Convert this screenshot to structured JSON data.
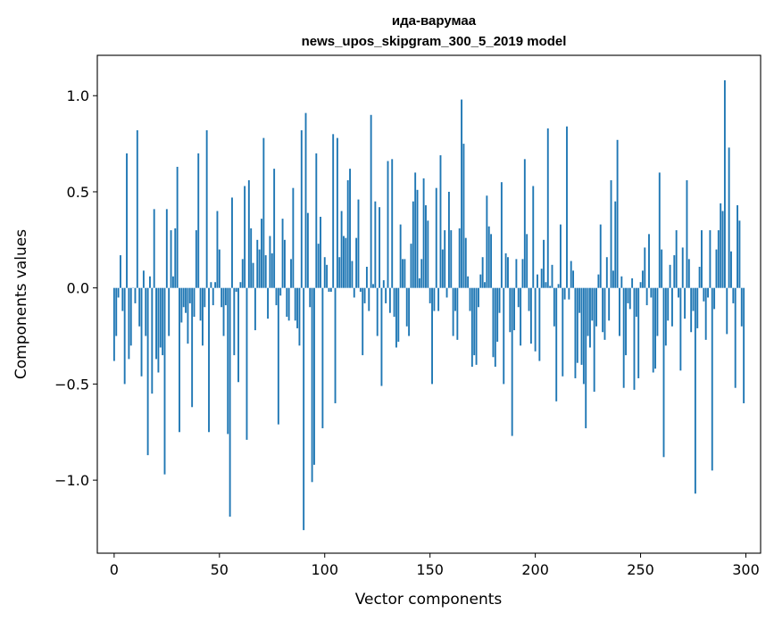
{
  "chart_data": {
    "type": "bar",
    "title_line1": "ида-варумаа",
    "title_line2": "news_upos_skipgram_300_5_2019 model",
    "xlabel": "Vector components",
    "ylabel": "Components values",
    "xlim": [
      -8,
      307
    ],
    "ylim": [
      -1.38,
      1.21
    ],
    "xticks": [
      {
        "value": 0,
        "label": "0"
      },
      {
        "value": 50,
        "label": "50"
      },
      {
        "value": 100,
        "label": "100"
      },
      {
        "value": 150,
        "label": "150"
      },
      {
        "value": 200,
        "label": "200"
      },
      {
        "value": 250,
        "label": "250"
      },
      {
        "value": 300,
        "label": "300"
      }
    ],
    "yticks": [
      {
        "value": -1.0,
        "label": "−1.0"
      },
      {
        "value": -0.5,
        "label": "−0.5"
      },
      {
        "value": 0.0,
        "label": "0.0"
      },
      {
        "value": 0.5,
        "label": "0.5"
      },
      {
        "value": 1.0,
        "label": "1.0"
      }
    ],
    "bar_color": "#1f77b4",
    "values": [
      -0.38,
      -0.25,
      -0.05,
      0.17,
      -0.12,
      -0.5,
      0.7,
      -0.37,
      -0.3,
      0.0,
      -0.08,
      0.82,
      -0.2,
      -0.46,
      0.09,
      -0.25,
      -0.87,
      0.06,
      -0.55,
      0.41,
      -0.37,
      -0.44,
      -0.31,
      -0.35,
      -0.97,
      0.41,
      -0.25,
      0.3,
      0.06,
      0.31,
      0.63,
      -0.75,
      -0.18,
      -0.1,
      -0.13,
      -0.29,
      -0.08,
      -0.62,
      -0.15,
      0.3,
      0.7,
      -0.17,
      -0.3,
      -0.1,
      0.82,
      -0.75,
      0.03,
      -0.09,
      0.03,
      0.4,
      0.2,
      -0.1,
      -0.25,
      -0.09,
      -0.76,
      -1.19,
      0.47,
      -0.35,
      -0.02,
      -0.49,
      0.03,
      0.15,
      0.53,
      -0.79,
      0.56,
      0.31,
      0.13,
      -0.22,
      0.25,
      0.2,
      0.36,
      0.78,
      0.17,
      -0.16,
      0.27,
      0.18,
      0.62,
      -0.09,
      -0.71,
      -0.04,
      0.36,
      0.25,
      -0.15,
      -0.17,
      0.15,
      0.52,
      -0.17,
      -0.21,
      -0.3,
      0.82,
      -1.26,
      0.91,
      0.39,
      -0.1,
      -1.01,
      -0.92,
      0.7,
      0.23,
      0.37,
      -0.73,
      0.16,
      0.12,
      -0.02,
      -0.02,
      0.8,
      -0.6,
      0.78,
      0.16,
      0.4,
      0.27,
      0.26,
      0.56,
      0.62,
      0.14,
      -0.05,
      0.26,
      0.46,
      -0.02,
      -0.35,
      -0.08,
      0.11,
      -0.12,
      0.9,
      0.02,
      0.45,
      -0.25,
      0.42,
      -0.51,
      0.04,
      -0.08,
      0.66,
      -0.13,
      0.67,
      -0.15,
      -0.31,
      -0.28,
      0.33,
      0.15,
      0.15,
      -0.2,
      -0.25,
      0.23,
      0.45,
      0.6,
      0.51,
      0.05,
      0.15,
      0.57,
      0.43,
      0.35,
      -0.08,
      -0.5,
      -0.12,
      0.52,
      -0.12,
      0.69,
      0.2,
      0.3,
      -0.05,
      0.5,
      0.3,
      -0.25,
      -0.12,
      -0.27,
      0.31,
      0.98,
      0.75,
      0.26,
      0.06,
      -0.12,
      -0.41,
      -0.35,
      -0.4,
      -0.1,
      0.07,
      0.16,
      0.03,
      0.48,
      0.32,
      0.28,
      -0.36,
      -0.41,
      -0.28,
      -0.13,
      0.55,
      -0.5,
      0.18,
      0.16,
      -0.23,
      -0.77,
      -0.22,
      0.15,
      -0.1,
      -0.3,
      0.15,
      0.67,
      0.28,
      -0.12,
      -0.29,
      0.53,
      -0.33,
      0.07,
      -0.38,
      0.1,
      0.25,
      0.03,
      0.83,
      0.01,
      0.12,
      -0.2,
      -0.59,
      0.02,
      0.33,
      -0.46,
      -0.06,
      0.84,
      -0.06,
      0.14,
      0.09,
      -0.47,
      -0.39,
      -0.13,
      -0.4,
      -0.5,
      -0.73,
      -0.25,
      -0.31,
      -0.17,
      -0.54,
      -0.2,
      0.07,
      0.33,
      -0.23,
      -0.27,
      0.16,
      -0.17,
      0.56,
      0.09,
      0.45,
      0.77,
      -0.25,
      0.06,
      -0.52,
      -0.35,
      -0.08,
      -0.11,
      0.05,
      -0.53,
      -0.15,
      -0.47,
      0.03,
      0.09,
      0.21,
      -0.09,
      0.28,
      -0.05,
      -0.44,
      -0.42,
      -0.25,
      0.6,
      0.2,
      -0.88,
      -0.3,
      -0.17,
      0.12,
      -0.2,
      0.17,
      0.3,
      -0.05,
      -0.43,
      0.21,
      -0.16,
      0.56,
      0.15,
      -0.23,
      -0.12,
      -1.07,
      -0.21,
      0.11,
      0.3,
      -0.07,
      -0.27,
      -0.05,
      0.3,
      -0.95,
      -0.11,
      0.2,
      0.3,
      0.44,
      0.4,
      1.08,
      -0.24,
      0.73,
      0.19,
      -0.08,
      -0.52,
      0.43,
      0.35,
      -0.2,
      -0.6
    ]
  }
}
